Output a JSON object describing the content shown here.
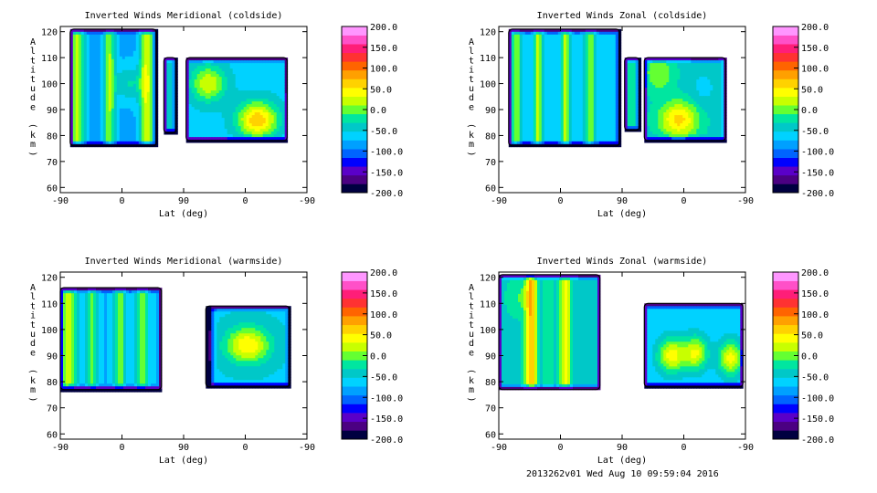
{
  "chart_data": [
    {
      "type": "heatmap",
      "title": "Inverted Winds Meridional (coldside)",
      "xlabel": "Lat (deg)",
      "ylabel": "Altitude (km)",
      "x_ticks": [
        "-90",
        "0",
        "90",
        "0",
        "-90"
      ],
      "y_ticks": [
        60,
        70,
        80,
        90,
        100,
        110,
        120
      ],
      "ylim": [
        58,
        122
      ],
      "colorbar": {
        "min": -200,
        "max": 200,
        "ticks": [
          "200.0",
          "150.0",
          "100.0",
          "50.0",
          "0.0",
          "-50.0",
          "-100.0",
          "-150.0",
          "-200.0"
        ]
      },
      "regions": [
        {
          "x0": 0.04,
          "x1": 0.39,
          "y0": 76,
          "y1": 121,
          "base": -80,
          "bands": [
            {
              "x": 0.07,
              "w": 0.03,
              "v": 20
            },
            {
              "x": 0.2,
              "w": 0.025,
              "v": 10
            },
            {
              "x": 0.35,
              "w": 0.03,
              "v": 30
            }
          ],
          "blobs": [
            {
              "x": 0.28,
              "y": 100,
              "r": 0.06,
              "v": -30
            }
          ]
        },
        {
          "x0": 0.42,
          "x1": 0.47,
          "y0": 81,
          "y1": 110,
          "base": -40,
          "bands": [],
          "blobs": []
        },
        {
          "x0": 0.51,
          "x1": 0.92,
          "y0": 78,
          "y1": 110,
          "base": -60,
          "bands": [],
          "blobs": [
            {
              "x": 0.6,
              "y": 100,
              "r": 0.07,
              "v": 30
            },
            {
              "x": 0.8,
              "y": 86,
              "r": 0.08,
              "v": 70
            }
          ]
        }
      ]
    },
    {
      "type": "heatmap",
      "title": "Inverted Winds Zonal (coldside)",
      "xlabel": "Lat (deg)",
      "ylabel": "Altitude (km)",
      "x_ticks": [
        "-90",
        "0",
        "90",
        "0",
        "-90"
      ],
      "y_ticks": [
        60,
        70,
        80,
        90,
        100,
        110,
        120
      ],
      "ylim": [
        58,
        122
      ],
      "colorbar": {
        "min": -200,
        "max": 200,
        "ticks": [
          "200.0",
          "150.0",
          "100.0",
          "50.0",
          "0.0",
          "-50.0",
          "-100.0",
          "-150.0",
          "-200.0"
        ]
      },
      "regions": [
        {
          "x0": 0.04,
          "x1": 0.49,
          "y0": 76,
          "y1": 121,
          "base": -70,
          "bands": [
            {
              "x": 0.07,
              "w": 0.02,
              "v": 10
            },
            {
              "x": 0.16,
              "w": 0.02,
              "v": 20
            },
            {
              "x": 0.27,
              "w": 0.02,
              "v": 30
            },
            {
              "x": 0.37,
              "w": 0.025,
              "v": 10
            }
          ],
          "blobs": []
        },
        {
          "x0": 0.51,
          "x1": 0.57,
          "y0": 82,
          "y1": 110,
          "base": -30,
          "bands": [],
          "blobs": []
        },
        {
          "x0": 0.59,
          "x1": 0.92,
          "y0": 78,
          "y1": 110,
          "base": -40,
          "bands": [],
          "blobs": [
            {
              "x": 0.73,
              "y": 86,
              "r": 0.08,
              "v": 60
            },
            {
              "x": 0.65,
              "y": 104,
              "r": 0.06,
              "v": 10
            },
            {
              "x": 0.83,
              "y": 98,
              "r": 0.05,
              "v": -60
            }
          ]
        }
      ]
    },
    {
      "type": "heatmap",
      "title": "Inverted Winds Meridional (warmside)",
      "xlabel": "Lat (deg)",
      "ylabel": "Altitude (km)",
      "x_ticks": [
        "-90",
        "0",
        "90",
        "0",
        "-90"
      ],
      "y_ticks": [
        60,
        70,
        80,
        90,
        100,
        110,
        120
      ],
      "ylim": [
        58,
        122
      ],
      "colorbar": {
        "min": -200,
        "max": 200,
        "ticks": [
          "200.0",
          "150.0",
          "100.0",
          "50.0",
          "0.0",
          "-50.0",
          "-100.0",
          "-150.0",
          "-200.0"
        ]
      },
      "regions": [
        {
          "x0": 0.0,
          "x1": 0.41,
          "y0": 77,
          "y1": 116,
          "base": -75,
          "bands": [
            {
              "x": 0.03,
              "w": 0.04,
              "v": 20
            },
            {
              "x": 0.13,
              "w": 0.025,
              "v": 0
            },
            {
              "x": 0.24,
              "w": 0.025,
              "v": 10
            },
            {
              "x": 0.33,
              "w": 0.03,
              "v": 0
            }
          ],
          "blobs": []
        },
        {
          "x0": 0.59,
          "x1": 0.93,
          "y0": 78,
          "y1": 109,
          "base": -55,
          "bands": [
            {
              "x": 0.6,
              "w": 0.02,
              "v": -200
            }
          ],
          "blobs": [
            {
              "x": 0.76,
              "y": 94,
              "r": 0.09,
              "v": 50
            }
          ]
        }
      ]
    },
    {
      "type": "heatmap",
      "title": "Inverted Winds Zonal (warmside)",
      "xlabel": "Lat (deg)",
      "ylabel": "Altitude (km)",
      "x_ticks": [
        "-90",
        "0",
        "90",
        "0",
        "-90"
      ],
      "y_ticks": [
        60,
        70,
        80,
        90,
        100,
        110,
        120
      ],
      "ylim": [
        58,
        122
      ],
      "colorbar": {
        "min": -200,
        "max": 200,
        "ticks": [
          "200.0",
          "150.0",
          "100.0",
          "50.0",
          "0.0",
          "-50.0",
          "-100.0",
          "-150.0",
          "-200.0"
        ]
      },
      "regions": [
        {
          "x0": 0.0,
          "x1": 0.41,
          "y0": 77,
          "y1": 121,
          "base": -40,
          "bands": [
            {
              "x": 0.13,
              "w": 0.025,
              "v": 70
            },
            {
              "x": 0.27,
              "w": 0.025,
              "v": 40
            },
            {
              "x": 0.2,
              "w": 0.02,
              "v": -20
            }
          ],
          "blobs": [
            {
              "x": 0.08,
              "y": 112,
              "r": 0.05,
              "v": -10
            }
          ]
        },
        {
          "x0": 0.59,
          "x1": 0.99,
          "y0": 78,
          "y1": 110,
          "base": -70,
          "bands": [],
          "blobs": [
            {
              "x": 0.7,
              "y": 90,
              "r": 0.06,
              "v": 40
            },
            {
              "x": 0.8,
              "y": 91,
              "r": 0.05,
              "v": 30
            },
            {
              "x": 0.94,
              "y": 89,
              "r": 0.05,
              "v": 40
            }
          ]
        }
      ]
    }
  ],
  "footer": "2013262v01 Wed Aug 10 09:59:04 2016",
  "colors": [
    "#000040",
    "#4b0082",
    "#5a00c8",
    "#0000ff",
    "#0064ff",
    "#00a0ff",
    "#00d2ff",
    "#00c8c8",
    "#00e6a0",
    "#64ff32",
    "#c8ff00",
    "#ffff00",
    "#ffd200",
    "#ffa000",
    "#ff6400",
    "#ff3232",
    "#ff1e78",
    "#ff50c8",
    "#ff96ff"
  ]
}
